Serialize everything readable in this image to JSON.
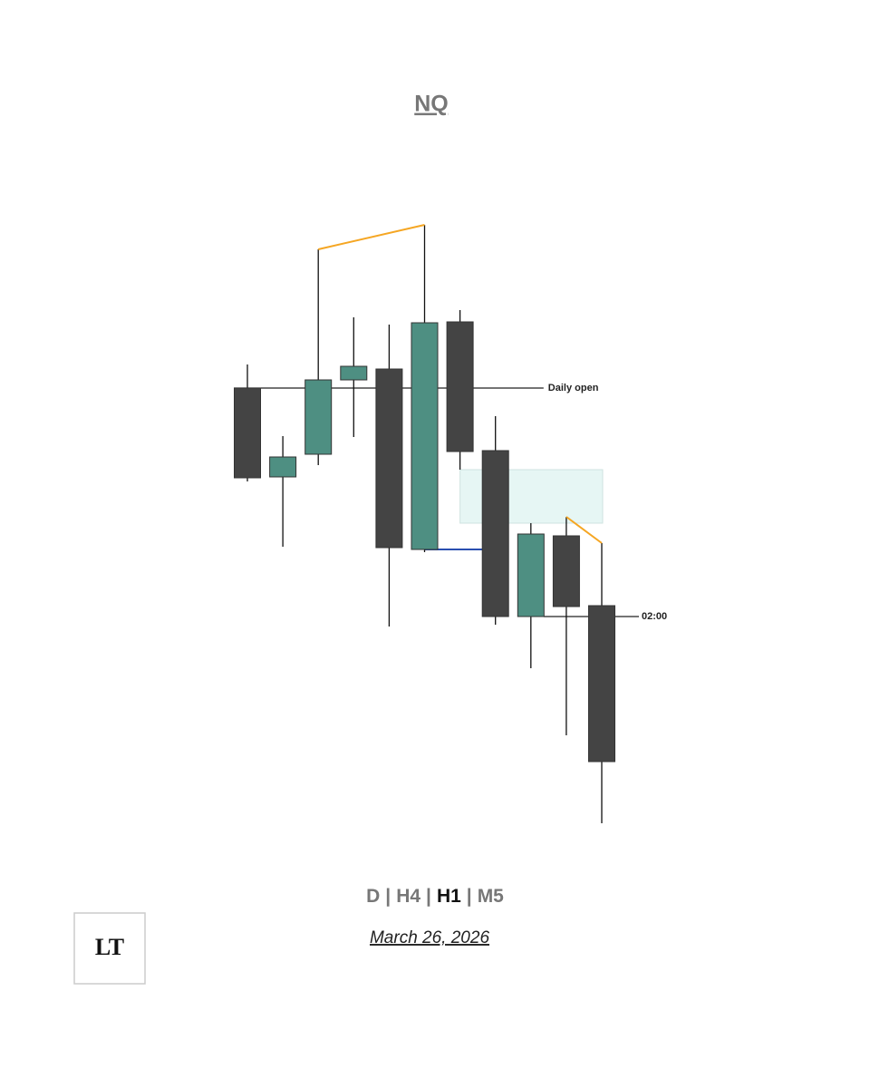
{
  "chart_data": {
    "type": "candlestick",
    "title": "NQ",
    "open": [
      772,
      674,
      699,
      781,
      793,
      594,
      845,
      703,
      520,
      609,
      532
    ],
    "high": [
      798,
      719,
      925,
      850,
      842,
      952,
      858,
      741,
      623,
      630,
      601
    ],
    "low": [
      669,
      597,
      687,
      718,
      509,
      591,
      682,
      511,
      463,
      389,
      292
    ],
    "close": [
      673,
      696,
      781,
      796,
      596,
      844,
      702,
      520,
      611,
      531,
      360
    ],
    "up_color": "#4e8f82",
    "down_color": "#444444",
    "ylim": [
      280,
      960
    ],
    "levels": [
      {
        "label": "Daily open",
        "value": 772
      },
      {
        "label": "02:00",
        "value": 520
      }
    ],
    "zone": {
      "top": 682,
      "bottom": 623,
      "color": "#e6f6f4"
    },
    "swing_color": "#f5a623",
    "open_line_color": "#2a4fb0",
    "timeframes": [
      "D",
      "H4",
      "H1",
      "M5"
    ],
    "separator": "|",
    "active_timeframe": "H1",
    "date": "March 26, 2026",
    "logo": "LT"
  }
}
